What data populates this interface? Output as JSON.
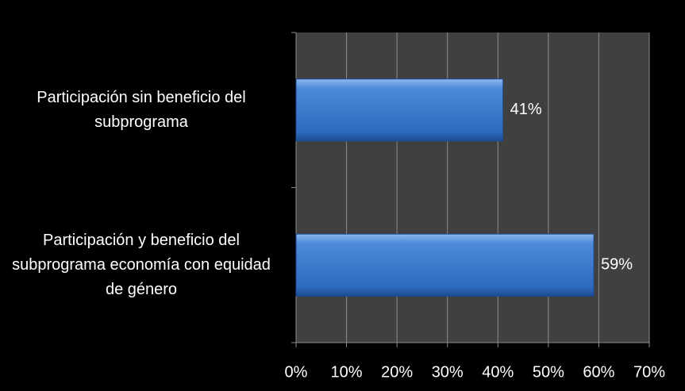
{
  "chart_data": {
    "type": "bar",
    "orientation": "horizontal",
    "categories": [
      "Participación sin beneficio del subprograma",
      "Participación y beneficio del subprograma economía con equidad de género"
    ],
    "values": [
      41,
      59
    ],
    "value_labels": [
      "41%",
      "59%"
    ],
    "color": "#3a78c9",
    "xlim": [
      0,
      70
    ],
    "xticks": [
      {
        "value": 0,
        "label": "0%"
      },
      {
        "value": 10,
        "label": "10%"
      },
      {
        "value": 20,
        "label": "20%"
      },
      {
        "value": 30,
        "label": "30%"
      },
      {
        "value": 40,
        "label": "40%"
      },
      {
        "value": 50,
        "label": "50%"
      },
      {
        "value": 60,
        "label": "60%"
      },
      {
        "value": 70,
        "label": "70%"
      }
    ],
    "grid": true
  }
}
